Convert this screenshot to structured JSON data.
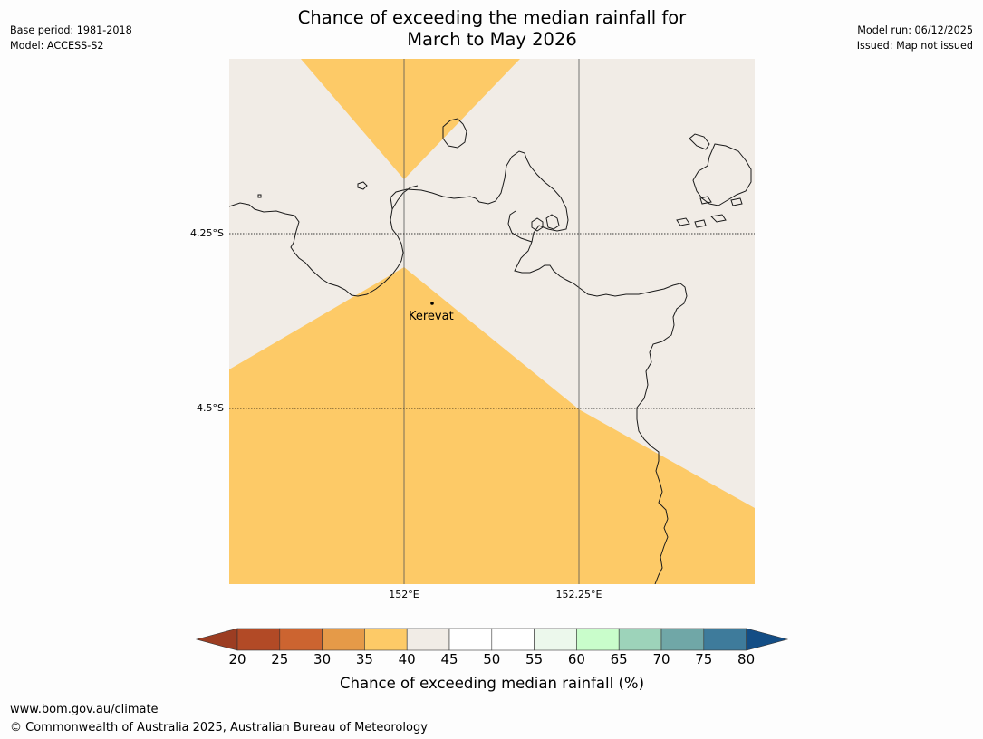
{
  "title": {
    "line1": "Chance of exceeding the median rainfall for",
    "line2": "March to May 2026"
  },
  "meta_left": {
    "base_period": "Base period: 1981-2018",
    "model": "Model: ACCESS-S2"
  },
  "meta_right": {
    "model_run": "Model run: 06/12/2025",
    "issued": "Issued: Map not issued"
  },
  "map": {
    "lat_labels": [
      "4.25°S",
      "4.5°S"
    ],
    "lon_labels": [
      "152°E",
      "152.25°E"
    ],
    "town": "Kerevat",
    "colors": {
      "band_35_40": "#fdca67",
      "band_40_45": "#f1ece6",
      "coastline": "#1a1a1a",
      "gridline": "#555555"
    }
  },
  "legend": {
    "ticks": [
      "20",
      "25",
      "30",
      "35",
      "40",
      "45",
      "50",
      "55",
      "60",
      "65",
      "70",
      "75",
      "80"
    ],
    "low_extend_color": "#9c3d22",
    "high_extend_color": "#134d85",
    "colors": [
      "#b24a26",
      "#cc6430",
      "#e59a48",
      "#fdca67",
      "#f1ece6",
      "#ffffff",
      "#ffffff",
      "#ecf8ec",
      "#c9fdcb",
      "#9dd3ba",
      "#70a7a7",
      "#3e7b9b"
    ],
    "label": "Chance of exceeding median rainfall (%)"
  },
  "footer": {
    "url": "www.bom.gov.au/climate",
    "copyright": "© Commonwealth of Australia 2025, Australian Bureau of Meteorology"
  }
}
